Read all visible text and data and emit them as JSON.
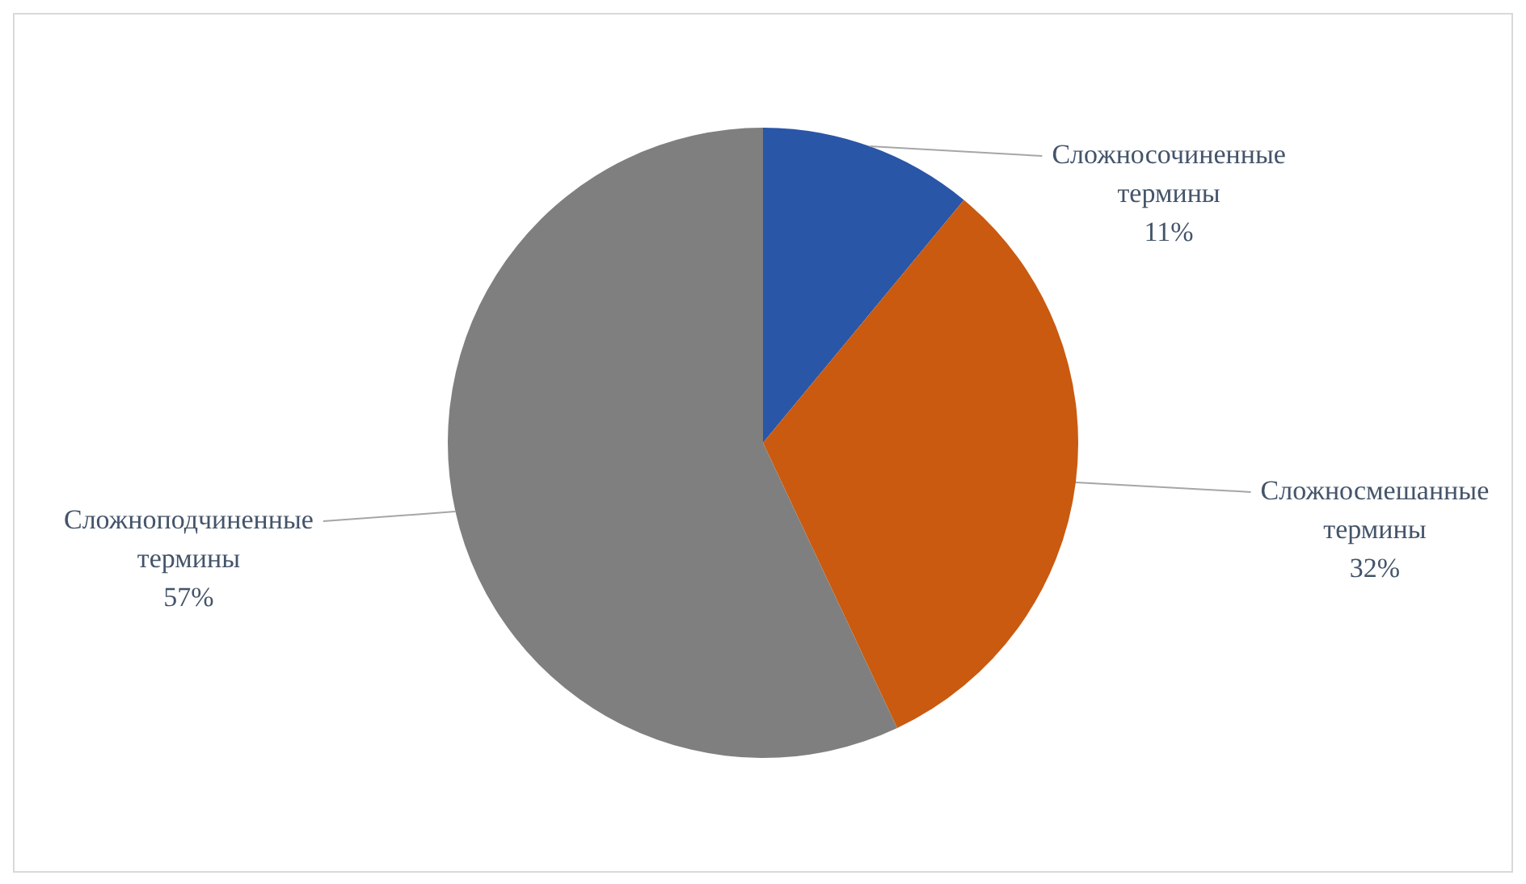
{
  "chart_data": {
    "type": "pie",
    "categories": [
      "Сложносочиненные термины",
      "Сложносмешанные термины",
      "Сложноподчиненные термины"
    ],
    "values": [
      11,
      32,
      57
    ],
    "colors": [
      "#2a56a8",
      "#c95a10",
      "#7f7f7f"
    ],
    "value_labels": [
      "11%",
      "32%",
      "57%"
    ],
    "legend": false
  }
}
